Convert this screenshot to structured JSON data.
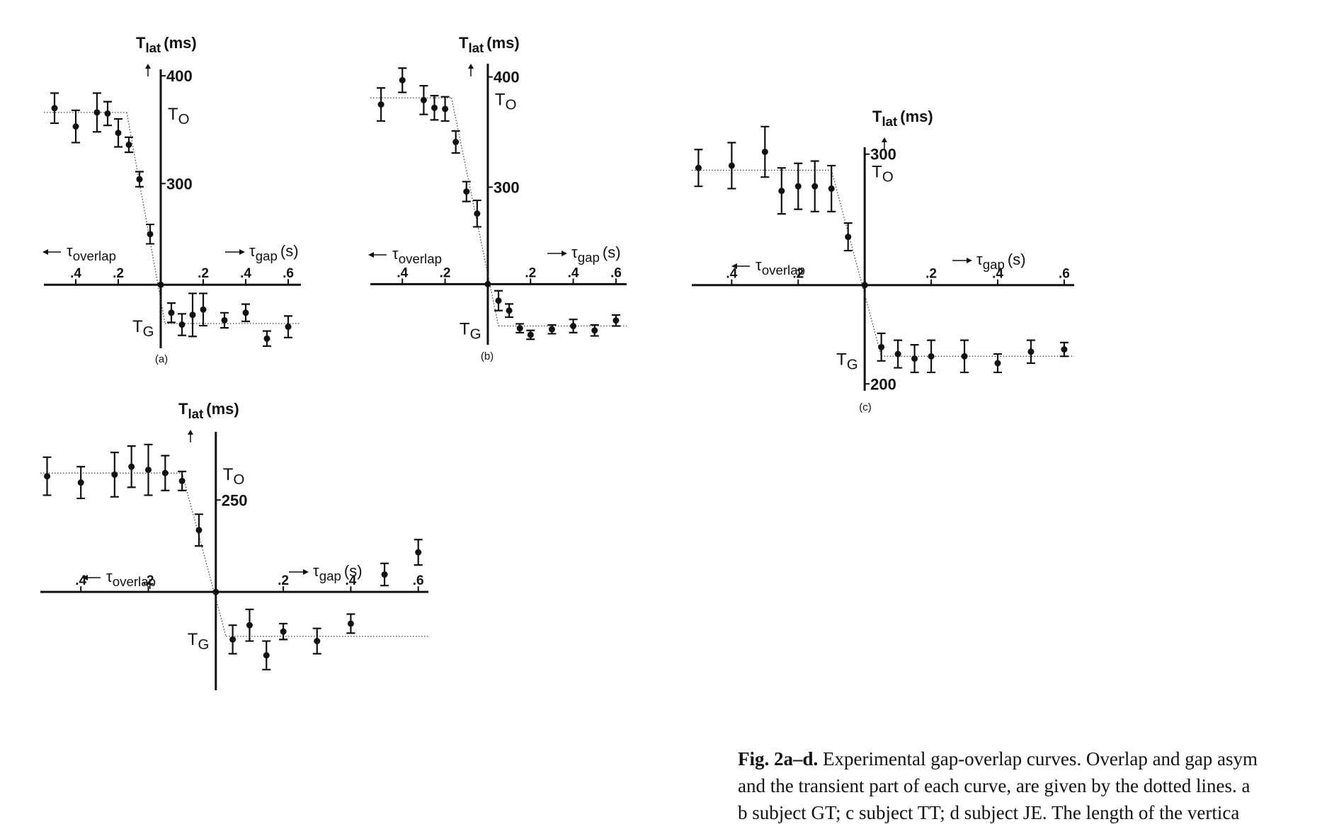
{
  "chart_data": [
    {
      "type": "errorbar",
      "panel_label": "(a)",
      "y_label": {
        "symbol": "T",
        "sub": "lat",
        "unit": "(ms)"
      },
      "x_label_left": {
        "symbol": "τ",
        "sub": "overlap"
      },
      "x_label_right": {
        "symbol": "τ",
        "sub": "gap",
        "unit": "(s)"
      },
      "x": [
        -0.5,
        -0.4,
        -0.3,
        -0.25,
        -0.2,
        -0.15,
        -0.1,
        -0.05,
        0,
        0.05,
        0.1,
        0.15,
        0.2,
        0.3,
        0.4,
        0.5,
        0.6
      ],
      "values": [
        370,
        353,
        366,
        365,
        347,
        336,
        304,
        253,
        206,
        180,
        169,
        178,
        183,
        173,
        180,
        156,
        167
      ],
      "errors": [
        14,
        15,
        18,
        11,
        13,
        7,
        7,
        9,
        null,
        9,
        10,
        20,
        15,
        7,
        8,
        7,
        10
      ],
      "xlim": [
        -0.55,
        0.66
      ],
      "ylim": [
        147,
        406
      ],
      "xticks": [
        {
          "value": -0.4,
          "label": ".4"
        },
        {
          "value": -0.2,
          "label": ".2"
        },
        {
          "value": 0.2,
          "label": ".2"
        },
        {
          "value": 0.4,
          "label": ".4"
        },
        {
          "value": 0.6,
          "label": ".6"
        }
      ],
      "yticks": [
        400,
        300
      ],
      "xaxis_at": 206,
      "levels": [
        {
          "symbol": "T",
          "sub": "O",
          "value": 366
        },
        {
          "symbol": "T",
          "sub": "G",
          "value": 170
        }
      ],
      "transient": [
        -0.16,
        0.02
      ]
    },
    {
      "type": "errorbar",
      "panel_label": "(b)",
      "y_label": {
        "symbol": "T",
        "sub": "lat",
        "unit": "(ms)"
      },
      "x_label_left": {
        "symbol": "τ",
        "sub": "overlap"
      },
      "x_label_right": {
        "symbol": "τ",
        "sub": "gap",
        "unit": "(s)"
      },
      "x": [
        -0.5,
        -0.4,
        -0.3,
        -0.25,
        -0.2,
        -0.15,
        -0.1,
        -0.05,
        0,
        0.05,
        0.1,
        0.15,
        0.2,
        0.3,
        0.4,
        0.5,
        0.6
      ],
      "values": [
        375,
        397,
        379,
        372,
        371,
        341,
        296,
        276,
        212,
        197,
        188,
        172,
        166,
        171,
        174,
        170,
        179
      ],
      "errors": [
        15,
        11,
        13,
        11,
        11,
        10,
        9,
        12,
        null,
        9,
        6,
        4,
        4,
        4,
        6,
        5,
        5
      ],
      "xlim": [
        -0.55,
        0.65
      ],
      "ylim": [
        157,
        412
      ],
      "xticks": [
        {
          "value": -0.4,
          "label": ".4"
        },
        {
          "value": -0.2,
          "label": ".2"
        },
        {
          "value": 0.2,
          "label": ".2"
        },
        {
          "value": 0.4,
          "label": ".4"
        },
        {
          "value": 0.6,
          "label": ".6"
        }
      ],
      "yticks": [
        400,
        300
      ],
      "xaxis_at": 212,
      "levels": [
        {
          "symbol": "T",
          "sub": "O",
          "value": 381
        },
        {
          "symbol": "T",
          "sub": "G",
          "value": 174
        }
      ],
      "transient": [
        -0.17,
        0.05
      ]
    },
    {
      "type": "errorbar",
      "panel_label": "(c)",
      "y_label": {
        "symbol": "T",
        "sub": "lat",
        "unit": "(ms)"
      },
      "x_label_left": {
        "symbol": "τ",
        "sub": "overlap"
      },
      "x_label_right": {
        "symbol": "τ",
        "sub": "gap",
        "unit": "(s)"
      },
      "x": [
        -0.5,
        -0.4,
        -0.3,
        -0.25,
        -0.2,
        -0.15,
        -0.1,
        -0.05,
        0,
        0.05,
        0.1,
        0.15,
        0.2,
        0.3,
        0.4,
        0.5,
        0.6
      ],
      "values": [
        294,
        295,
        301,
        284,
        286,
        286,
        285,
        264,
        243,
        216,
        213,
        211,
        212,
        212,
        209,
        214,
        215
      ],
      "errors": [
        8,
        10,
        11,
        10,
        10,
        11,
        10,
        6,
        null,
        6,
        6,
        6,
        7,
        7,
        4,
        5,
        3
      ],
      "xlim": [
        -0.52,
        0.63
      ],
      "ylim": [
        197,
        303
      ],
      "xticks": [
        {
          "value": -0.4,
          "label": ".4"
        },
        {
          "value": -0.2,
          "label": ".2"
        },
        {
          "value": 0.2,
          "label": ".2"
        },
        {
          "value": 0.4,
          "label": ".4"
        },
        {
          "value": 0.6,
          "label": ".6"
        }
      ],
      "yticks": [
        300,
        200
      ],
      "xaxis_at": 243,
      "levels": [
        {
          "symbol": "T",
          "sub": "O",
          "value": 293
        },
        {
          "symbol": "T",
          "sub": "G",
          "value": 212
        }
      ],
      "transient": [
        -0.1,
        0.05
      ]
    },
    {
      "type": "errorbar",
      "y_label": {
        "symbol": "T",
        "sub": "lat",
        "unit": "(ms)"
      },
      "x_label_left": {
        "symbol": "τ",
        "sub": "overlap"
      },
      "x_label_right": {
        "symbol": "τ",
        "sub": "gap",
        "unit": "(s)"
      },
      "x": [
        -0.5,
        -0.4,
        -0.3,
        -0.25,
        -0.2,
        -0.15,
        -0.1,
        -0.05,
        0,
        0.05,
        0.1,
        0.15,
        0.2,
        0.3,
        0.4,
        0.5,
        0.6
      ],
      "values": [
        265,
        261,
        266,
        271,
        269,
        267,
        262,
        231,
        192,
        162,
        171,
        152,
        167,
        161,
        172,
        203,
        217
      ],
      "errors": [
        12,
        10,
        14,
        13,
        16,
        11,
        6,
        10,
        null,
        9,
        10,
        9,
        5,
        8,
        6,
        7,
        8
      ],
      "xlim": [
        -0.52,
        0.63
      ],
      "ylim": [
        130,
        293
      ],
      "xticks": [
        {
          "value": -0.4,
          "label": ".4"
        },
        {
          "value": -0.2,
          "label": ".2"
        },
        {
          "value": 0.2,
          "label": ".2"
        },
        {
          "value": 0.4,
          "label": ".4"
        },
        {
          "value": 0.6,
          "label": ".6"
        }
      ],
      "yticks": [
        250
      ],
      "xaxis_at": 192,
      "levels": [
        {
          "symbol": "T",
          "sub": "O",
          "value": 267
        },
        {
          "symbol": "T",
          "sub": "G",
          "value": 164
        }
      ],
      "transient": [
        -0.1,
        0.03
      ]
    }
  ],
  "caption": {
    "label": "Fig. 2a–d.",
    "lines": [
      "Experimental gap-overlap curves. Overlap and gap asym",
      "and the transient part of each curve, are given by the dotted   lines.   a",
      "b subject   GT;   c subject   TT;   d subject JE. The length of the vertica"
    ]
  }
}
